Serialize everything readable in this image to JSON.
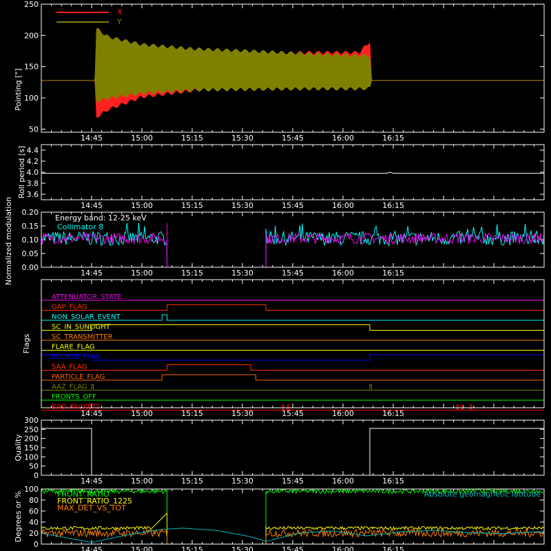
{
  "x_tick_labels": [
    "14:45",
    "15:00",
    "15:15",
    "15:30",
    "15:45",
    "16:00",
    "16:15"
  ],
  "time_domain_min": [
    0,
    150
  ],
  "chart_data": [
    {
      "type": "area",
      "panel": "pointing",
      "ylabel": "Pointing [\"]",
      "ylim": [
        45,
        250
      ],
      "yticks": [
        50,
        100,
        150,
        200,
        250
      ],
      "legend": [
        {
          "name": "X",
          "color": "#ff2020"
        },
        {
          "name": "Y",
          "color": "#808000"
        }
      ],
      "series": [
        {
          "name": "X",
          "color": "#ff2020",
          "values_note": "",
          "envelope": [
            [
              0,
              128,
              128
            ],
            [
              16,
              128,
              128
            ],
            [
              16.5,
              70,
              185
            ],
            [
              20,
              82,
              178
            ],
            [
              30,
              102,
              172
            ],
            [
              45,
              112,
              170
            ],
            [
              60,
              122,
              170
            ],
            [
              80,
              125,
              172
            ],
            [
              95,
              126,
              172
            ],
            [
              98,
              125,
              190
            ],
            [
              98.5,
              128,
              128
            ],
            [
              150,
              128,
              128
            ]
          ]
        },
        {
          "name": "Y",
          "color": "#808000",
          "envelope": [
            [
              0,
              128,
              128
            ],
            [
              16,
              128,
              128
            ],
            [
              16.5,
              95,
              210
            ],
            [
              20,
              100,
              197
            ],
            [
              30,
              108,
              185
            ],
            [
              45,
              113,
              178
            ],
            [
              60,
              114,
              175
            ],
            [
              80,
              115,
              170
            ],
            [
              95,
              115,
              167
            ],
            [
              98,
              116,
              167
            ],
            [
              98.5,
              128,
              128
            ],
            [
              150,
              128,
              128
            ]
          ]
        }
      ]
    },
    {
      "type": "line",
      "panel": "roll",
      "ylabel": "Roll period [s]",
      "ylim": [
        3.5,
        4.5
      ],
      "yticks": [
        3.6,
        3.8,
        4.0,
        4.2,
        4.4
      ],
      "series": [
        {
          "name": "",
          "color": "#ffffff",
          "points": [
            [
              0,
              3.98
            ],
            [
              103,
              3.98
            ],
            [
              104,
              4.0
            ],
            [
              105,
              3.98
            ],
            [
              150,
              3.98
            ]
          ]
        }
      ]
    },
    {
      "type": "line",
      "panel": "modulation",
      "ylabel": "Normalized modulation",
      "ylim": [
        0,
        0.2
      ],
      "yticks": [
        0.0,
        0.05,
        0.1,
        0.15,
        0.2
      ],
      "annotations": [
        "Energy band: 12-25 keV"
      ],
      "legend": [
        {
          "name": "Collimator 8",
          "color": "#00ffff"
        }
      ],
      "segments": [
        [
          0,
          37.5
        ],
        [
          67,
          150
        ]
      ],
      "baseline": 0.105,
      "noise": 0.02,
      "series": [
        {
          "name": "Collimator 8",
          "color": "#00ffff"
        },
        {
          "name": "",
          "color": "#ff00ff"
        }
      ]
    },
    {
      "type": "line",
      "panel": "flags",
      "ylabel": "Flags",
      "flags": [
        {
          "name": "ATTENUATOR_STATE",
          "color": "#ff00ff",
          "highs": []
        },
        {
          "name": "GAP_FLAG",
          "color": "#ff3300",
          "highs": [
            [
              37.5,
              67
            ]
          ]
        },
        {
          "name": "NON_SOLAR_EVENT",
          "color": "#00ffff",
          "highs": [
            [
              36,
              37.5
            ]
          ]
        },
        {
          "name": "SC_IN_SUNLIGHT",
          "color": "#ffff00",
          "highs": [
            [
              15,
              98
            ]
          ]
        },
        {
          "name": "SC_TRANSMITTER",
          "color": "#ff7f00",
          "highs": []
        },
        {
          "name": "FLARE_FLAG",
          "color": "#ffff00",
          "highs": []
        },
        {
          "name": "ECLIPSE_FLAG",
          "color": "#0000ff",
          "highs": [
            [
              0,
              15
            ],
            [
              98,
              150
            ]
          ]
        },
        {
          "name": "SAA_FLAG",
          "color": "#ff3300",
          "highs": [
            [
              37.5,
              62.5
            ]
          ]
        },
        {
          "name": "PARTICLE_FLAG",
          "color": "#ff6600",
          "highs": [
            [
              36,
              64
            ]
          ]
        },
        {
          "name": "AAZ_FLAG",
          "color": "#808000",
          "highs": [
            [
              15,
              15.5
            ],
            [
              98,
              98.5
            ]
          ]
        },
        {
          "name": "FRONTS_OFF",
          "color": "#00ff00",
          "highs": []
        },
        {
          "name": "BAD_PACKETS",
          "color": "#ff0000",
          "highs": [
            [
              72,
              72.3
            ],
            [
              73.5,
              73.8
            ],
            [
              124,
              124.3
            ],
            [
              125.5,
              125.8
            ],
            [
              128,
              128.3
            ]
          ]
        }
      ]
    },
    {
      "type": "line",
      "panel": "quality",
      "ylabel": "Quality",
      "ylim": [
        0,
        300
      ],
      "yticks": [
        0,
        50,
        100,
        150,
        200,
        250,
        300
      ],
      "series": [
        {
          "name": "",
          "color": "#ffffff",
          "points": [
            [
              0,
              255
            ],
            [
              15,
              255
            ],
            [
              15,
              0
            ],
            [
              98,
              0
            ],
            [
              98,
              255
            ],
            [
              150,
              255
            ]
          ]
        }
      ]
    },
    {
      "type": "line",
      "panel": "ratios",
      "ylabel": "Degrees or %",
      "ylim": [
        0,
        100
      ],
      "yticks": [
        0,
        20,
        40,
        60,
        80,
        100
      ],
      "annotations": [
        "Absolute geomagnetic latitude"
      ],
      "legend": [
        {
          "name": "FRONT_RATIO",
          "color": "#00ff00"
        },
        {
          "name": "FRONT_RATIO_1225",
          "color": "#ffff00"
        },
        {
          "name": "MAX_DET_VS_TOT",
          "color": "#ff8000"
        }
      ],
      "segments": [
        [
          0,
          37.5
        ],
        [
          67,
          150
        ]
      ],
      "series": [
        {
          "name": "FRONT_RATIO",
          "color": "#00ff00",
          "level": 96,
          "noise": 4
        },
        {
          "name": "FRONT_RATIO_1225",
          "color": "#ffff00",
          "level": 29,
          "noise": 3
        },
        {
          "name": "MAX_DET_VS_TOT",
          "color": "#ff8000",
          "level": 20,
          "noise": 7
        },
        {
          "name": "Absolute geomagnetic latitude",
          "color": "#00bbbb",
          "points": [
            [
              0,
              20
            ],
            [
              7,
              12
            ],
            [
              15,
              3
            ],
            [
              25,
              16
            ],
            [
              35,
              26
            ],
            [
              42,
              29
            ],
            [
              52,
              25
            ],
            [
              62,
              14
            ],
            [
              67,
              5
            ],
            [
              77,
              20
            ],
            [
              87,
              24
            ],
            [
              97,
              15
            ],
            [
              107,
              22
            ],
            [
              117,
              25
            ],
            [
              127,
              21
            ],
            [
              137,
              19
            ],
            [
              150,
              23
            ]
          ]
        }
      ]
    }
  ]
}
